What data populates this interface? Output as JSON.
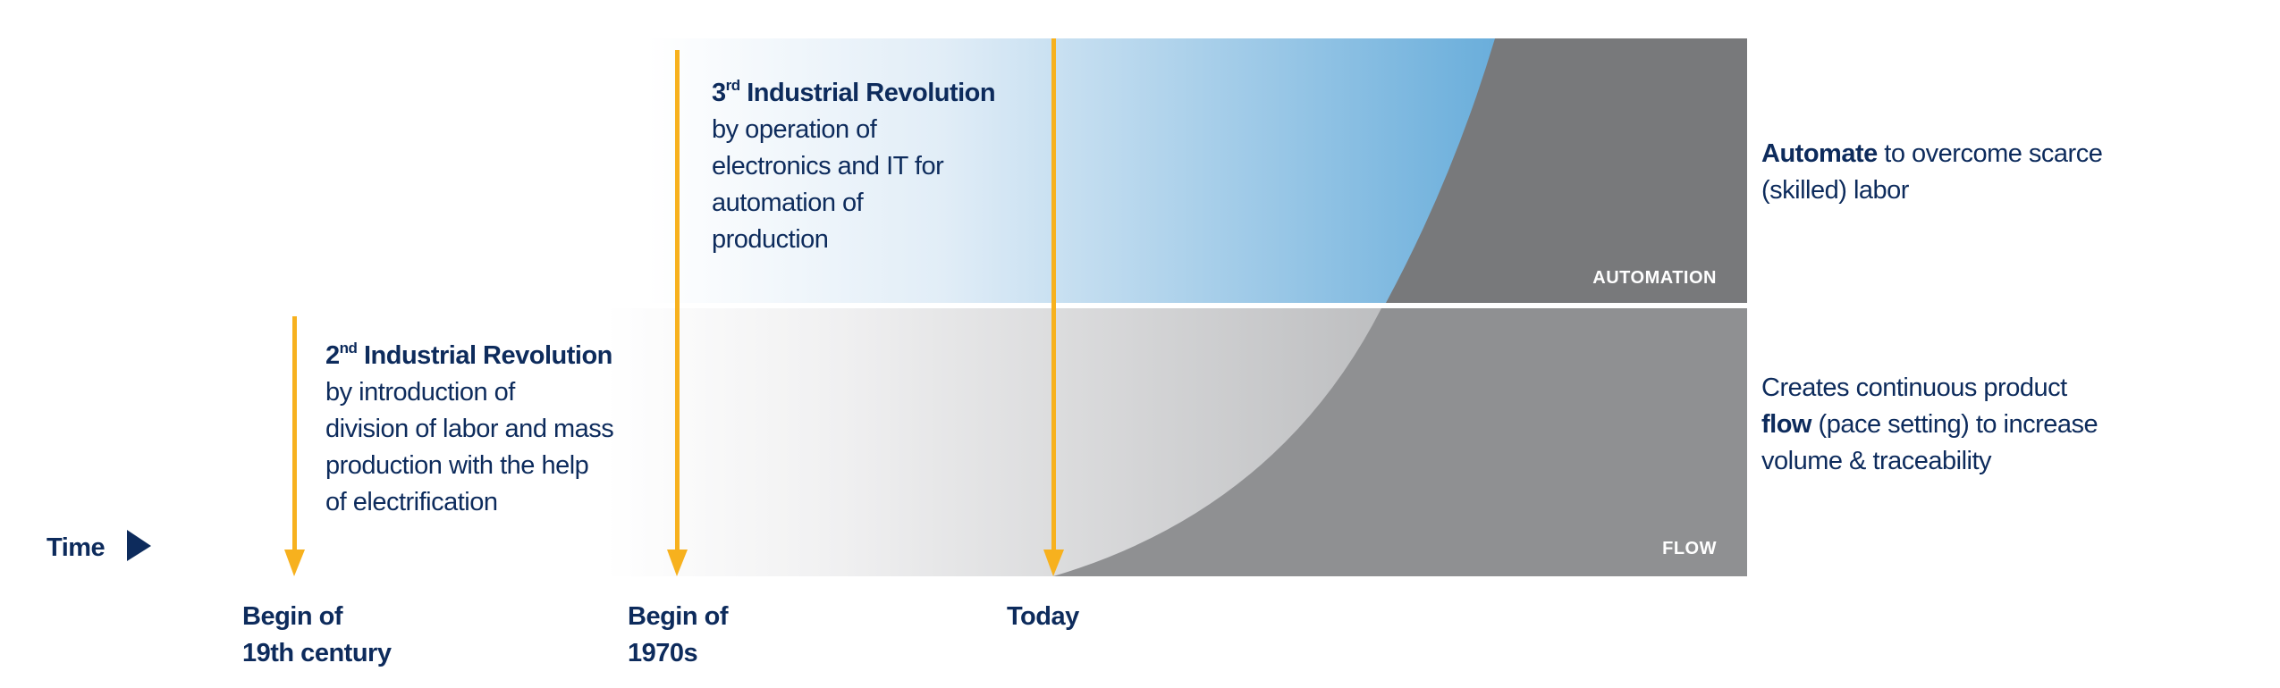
{
  "colors": {
    "navy": "#0d2b5c",
    "arrow": "#f7b11e",
    "automation_area": "#78797b",
    "flow_area": "#8f9092",
    "blue": "#6aaedb"
  },
  "time_label": "Time",
  "time_icon": "triangle-right-icon",
  "revolutions": [
    {
      "num": "2",
      "sup": "nd",
      "title": "Industrial Revolution",
      "lines": [
        "by introduction of",
        "division of labor and mass",
        "production with the help",
        "of electrification"
      ]
    },
    {
      "num": "3",
      "sup": "rd",
      "title": "Industrial Revolution",
      "lines": [
        "by operation of",
        "electronics and IT for",
        "automation of",
        "production"
      ]
    }
  ],
  "milestones": [
    {
      "line1": "Begin of",
      "line2": "19th century"
    },
    {
      "line1": "Begin of",
      "line2": "1970s"
    },
    {
      "line1": "Today",
      "line2": ""
    }
  ],
  "areas": {
    "automation_label": "AUTOMATION",
    "flow_label": "FLOW"
  },
  "notes": {
    "automation": {
      "bold": "Automate",
      "rest": " to overcome scarce",
      "line2": "(skilled) labor"
    },
    "flow": {
      "line1": "Creates continuous product",
      "bold": "flow",
      "rest": " (pace setting) to increase",
      "line3": "volume & traceability"
    }
  }
}
